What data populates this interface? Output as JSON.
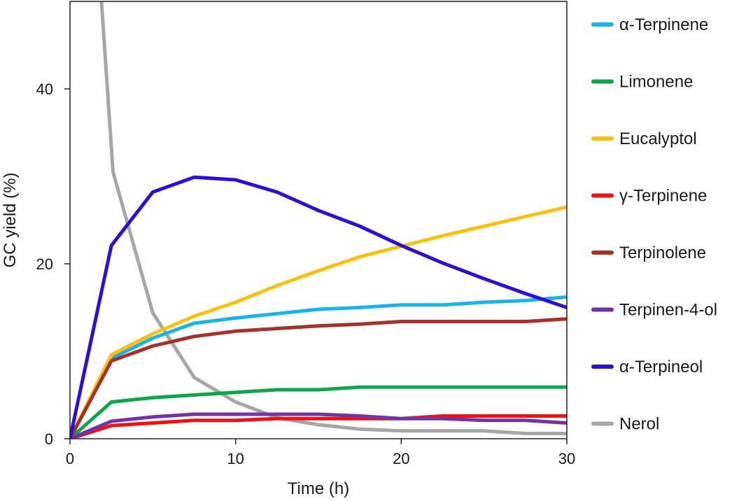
{
  "chart_data": {
    "type": "line",
    "xlabel": "Time (h)",
    "ylabel": "GC yield (%)",
    "xlim": [
      0,
      30
    ],
    "ylim": [
      0,
      50
    ],
    "xticks": [
      0,
      10,
      20,
      30
    ],
    "yticks": [
      0,
      20,
      40
    ],
    "grid": false,
    "legend_position": "right",
    "series": [
      {
        "name": "α-Terpinene",
        "color": "#1ab2ea",
        "x": [
          0,
          2.5,
          5,
          7.5,
          10,
          12.5,
          15,
          17.5,
          20,
          22.5,
          25,
          27.5,
          30
        ],
        "y": [
          0,
          9.2,
          11.5,
          13.2,
          13.8,
          14.3,
          14.8,
          15.0,
          15.3,
          15.3,
          15.6,
          15.8,
          16.2
        ]
      },
      {
        "name": "Limonene",
        "color": "#0ca54c",
        "x": [
          0,
          2.5,
          5,
          7.5,
          10,
          12.5,
          15,
          17.5,
          20,
          22.5,
          25,
          27.5,
          30
        ],
        "y": [
          0,
          4.2,
          4.7,
          5.0,
          5.3,
          5.6,
          5.6,
          5.9,
          5.9,
          5.9,
          5.9,
          5.9,
          5.9
        ]
      },
      {
        "name": "Eucalyptol",
        "color": "#fbbf0e",
        "x": [
          0,
          2.5,
          5,
          7.5,
          10,
          12.5,
          15,
          17.5,
          20,
          22.5,
          25,
          27.5,
          30
        ],
        "y": [
          0,
          9.6,
          12.0,
          14.0,
          15.6,
          17.5,
          19.2,
          20.8,
          22.0,
          23.2,
          24.3,
          25.4,
          26.5
        ]
      },
      {
        "name": "γ-Terpinene",
        "color": "#ee1111",
        "x": [
          0,
          2.5,
          5,
          7.5,
          10,
          12.5,
          15,
          17.5,
          20,
          22.5,
          25,
          27.5,
          30
        ],
        "y": [
          0,
          1.5,
          1.8,
          2.1,
          2.1,
          2.3,
          2.3,
          2.3,
          2.3,
          2.6,
          2.6,
          2.6,
          2.6
        ]
      },
      {
        "name": "Terpinolene",
        "color": "#a6312a",
        "x": [
          0,
          2.5,
          5,
          7.5,
          10,
          12.5,
          15,
          17.5,
          20,
          22.5,
          25,
          27.5,
          30
        ],
        "y": [
          0,
          8.9,
          10.6,
          11.7,
          12.3,
          12.6,
          12.9,
          13.1,
          13.4,
          13.4,
          13.4,
          13.4,
          13.7
        ]
      },
      {
        "name": "Terpinen-4-ol",
        "color": "#7233a6",
        "x": [
          0,
          2.5,
          5,
          7.5,
          10,
          12.5,
          15,
          17.5,
          20,
          22.5,
          25,
          27.5,
          30
        ],
        "y": [
          0,
          2.0,
          2.5,
          2.8,
          2.8,
          2.8,
          2.8,
          2.6,
          2.3,
          2.3,
          2.1,
          2.1,
          1.8
        ]
      },
      {
        "name": "α-Terpineol",
        "color": "#2b0fd6",
        "x": [
          0,
          2.5,
          5,
          7.5,
          10,
          12.5,
          15,
          17.5,
          20,
          22.5,
          25,
          27.5,
          30
        ],
        "y": [
          0,
          22.1,
          28.2,
          29.9,
          29.6,
          28.2,
          26.1,
          24.3,
          22.1,
          20.1,
          18.3,
          16.6,
          15.0
        ]
      },
      {
        "name": "Nerol",
        "color": "#a6a6a6",
        "x": [
          1.9,
          2.6,
          5,
          7.5,
          10,
          12.5,
          15,
          17.5,
          20,
          22.5,
          25,
          27.5,
          30
        ],
        "y": [
          50,
          30.5,
          14.4,
          7.0,
          4.2,
          2.4,
          1.6,
          1.1,
          0.9,
          0.9,
          0.9,
          0.6,
          0.6
        ]
      }
    ]
  }
}
